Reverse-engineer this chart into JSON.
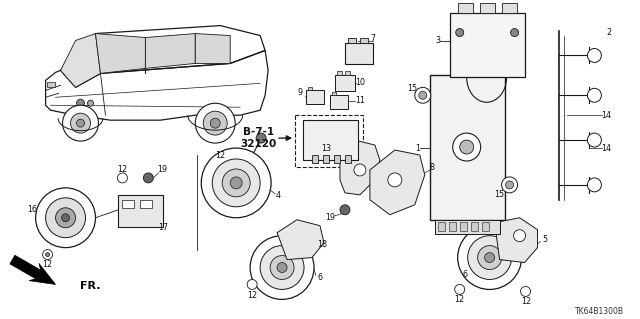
{
  "background_color": "#ffffff",
  "diagram_code": "TK64B1300B",
  "figsize": [
    6.4,
    3.19
  ],
  "dpi": 100,
  "line_color": "#1a1a1a",
  "text_color": "#111111",
  "num_fontsize": 5.8,
  "gray_fill": "#e8e8e8",
  "dark_fill": "#555555"
}
